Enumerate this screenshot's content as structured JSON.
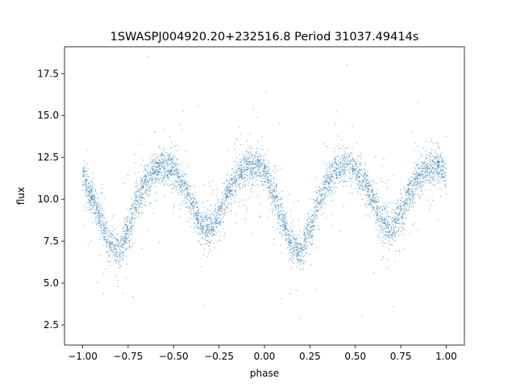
{
  "chart_data": {
    "type": "scatter",
    "title": "1SWASPJ004920.20+232516.8 Period 31037.49414s",
    "xlabel": "phase",
    "ylabel": "flux",
    "xlim": [
      -1.1,
      1.1
    ],
    "ylim": [
      1.3,
      19.1
    ],
    "xticks": [
      -1.0,
      -0.75,
      -0.5,
      -0.25,
      0.0,
      0.25,
      0.5,
      0.75,
      1.0
    ],
    "xtick_labels": [
      "−1.00",
      "−0.75",
      "−0.50",
      "−0.25",
      "0.00",
      "0.25",
      "0.50",
      "0.75",
      "1.00"
    ],
    "yticks": [
      2.5,
      5.0,
      7.5,
      10.0,
      12.5,
      15.0,
      17.5
    ],
    "ytick_labels": [
      "2.5",
      "5.0",
      "7.5",
      "10.0",
      "12.5",
      "15.0",
      "17.5"
    ],
    "grid": false,
    "legend": "none",
    "point_color": "#1f77b4",
    "series": [
      {
        "x": [
          -1.0,
          -0.95,
          -0.9,
          -0.85,
          -0.8,
          -0.75,
          -0.7,
          -0.65,
          -0.6,
          -0.55,
          -0.5,
          -0.45,
          -0.4,
          -0.35,
          -0.3,
          -0.25,
          -0.2,
          -0.15,
          -0.1,
          -0.05,
          0.0,
          0.05,
          0.1,
          0.15,
          0.2,
          0.25,
          0.3,
          0.35,
          0.4,
          0.45,
          0.5,
          0.55,
          0.6,
          0.65,
          0.7,
          0.75,
          0.8,
          0.85,
          0.9,
          0.95,
          1.0
        ],
        "y": [
          11.3,
          10.2,
          8.8,
          7.3,
          6.8,
          8.2,
          9.9,
          11.1,
          11.8,
          12.0,
          11.7,
          10.9,
          9.8,
          8.6,
          8.1,
          9.0,
          10.4,
          11.4,
          11.9,
          12.0,
          11.6,
          10.3,
          8.7,
          7.2,
          6.8,
          8.3,
          9.9,
          11.1,
          11.8,
          12.0,
          11.7,
          10.9,
          9.8,
          8.6,
          8.1,
          9.0,
          10.4,
          11.4,
          11.9,
          12.0,
          11.6
        ]
      }
    ]
  }
}
